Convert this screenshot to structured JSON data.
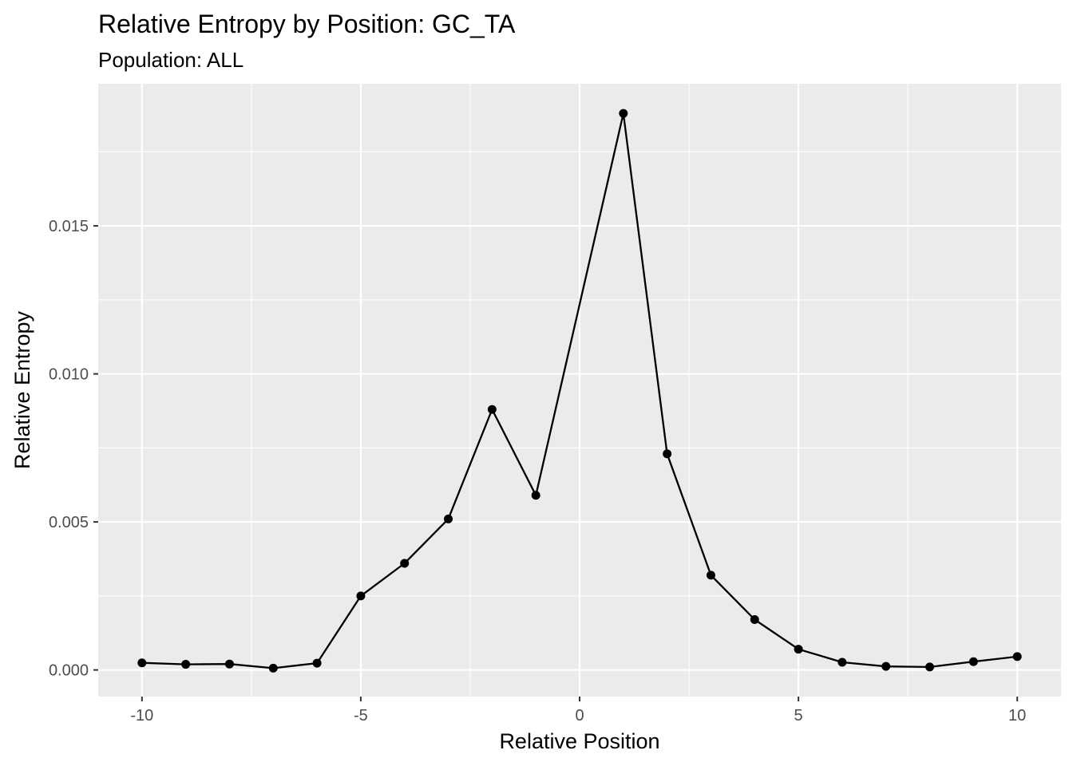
{
  "chart_data": {
    "type": "line",
    "title": "Relative Entropy by Position: GC_TA",
    "subtitle": "Population: ALL",
    "xlabel": "Relative Position",
    "ylabel": "Relative Entropy",
    "xlim": [
      -11,
      11
    ],
    "ylim": [
      -0.0009,
      0.0198
    ],
    "x_ticks": [
      {
        "value": -10,
        "label": "-10"
      },
      {
        "value": -5,
        "label": "-5"
      },
      {
        "value": 0,
        "label": "0"
      },
      {
        "value": 5,
        "label": "5"
      },
      {
        "value": 10,
        "label": "10"
      }
    ],
    "y_ticks": [
      {
        "value": 0.0,
        "label": "0.000"
      },
      {
        "value": 0.005,
        "label": "0.005"
      },
      {
        "value": 0.01,
        "label": "0.010"
      },
      {
        "value": 0.015,
        "label": "0.015"
      }
    ],
    "x_minor_ticks": [
      -7.5,
      -2.5,
      2.5,
      7.5
    ],
    "y_minor_ticks": [
      0.0025,
      0.0075,
      0.0125,
      0.0175
    ],
    "grid": true,
    "legend": "none",
    "colors": {
      "panel_background": "#ebebeb",
      "grid": "#ffffff",
      "line": "#000000",
      "point": "#000000",
      "tick_label": "#4d4d4d",
      "tick_mark": "#333333"
    },
    "series": [
      {
        "x": [
          -10,
          -9,
          -8,
          -7,
          -6,
          -5,
          -4,
          -3,
          -2,
          -1,
          1,
          2,
          3,
          4,
          5,
          6,
          7,
          8,
          9,
          10
        ],
        "y": [
          0.00024,
          0.00019,
          0.0002,
          6e-05,
          0.00023,
          0.0025,
          0.0036,
          0.0051,
          0.0088,
          0.0059,
          0.0188,
          0.0073,
          0.0032,
          0.0017,
          0.0007,
          0.00026,
          0.00012,
          0.0001,
          0.00028,
          0.00045
        ]
      }
    ]
  }
}
